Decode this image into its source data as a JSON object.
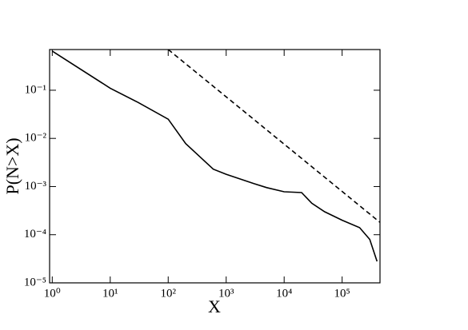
{
  "chart_data": {
    "type": "line",
    "x_label": "X",
    "y_label": "P(N>X)",
    "xscale": "log",
    "yscale": "log",
    "xlim": [
      0.9,
      450000
    ],
    "ylim": [
      1e-05,
      0.7
    ],
    "xticks": [
      {
        "value": 1,
        "label": "10⁰"
      },
      {
        "value": 10,
        "label": "10¹"
      },
      {
        "value": 100,
        "label": "10²"
      },
      {
        "value": 1000,
        "label": "10³"
      },
      {
        "value": 10000,
        "label": "10⁴"
      },
      {
        "value": 100000,
        "label": "10⁵"
      }
    ],
    "yticks": [
      {
        "value": 1e-05,
        "label": "10⁻⁵"
      },
      {
        "value": 0.0001,
        "label": "10⁻⁴"
      },
      {
        "value": 0.001,
        "label": "10⁻³"
      },
      {
        "value": 0.01,
        "label": "10⁻²"
      },
      {
        "value": 0.1,
        "label": "10⁻¹"
      }
    ],
    "series": [
      {
        "color": "#000000",
        "dashed": false,
        "x": [
          1,
          10,
          30,
          100,
          200,
          400,
          600,
          1000,
          3000,
          5000,
          10000,
          20000,
          30000,
          50000,
          100000,
          200000,
          300000,
          400000
        ],
        "values": [
          0.65,
          0.11,
          0.056,
          0.025,
          0.0078,
          0.0036,
          0.0023,
          0.0018,
          0.00115,
          0.00095,
          0.00078,
          0.00075,
          0.00045,
          0.0003,
          0.0002,
          0.00014,
          8e-05,
          2.8e-05
        ]
      },
      {
        "color": "#000000",
        "dashed": true,
        "x": [
          100,
          450000
        ],
        "values": [
          0.7,
          0.00018
        ]
      }
    ]
  }
}
